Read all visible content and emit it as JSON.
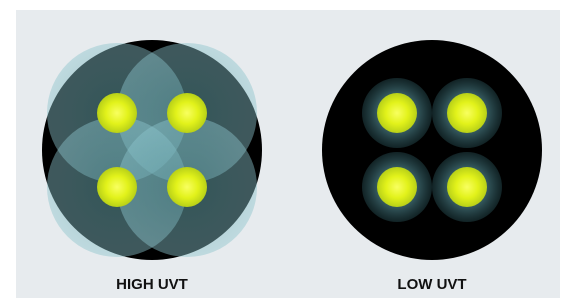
{
  "panels": [
    {
      "label": "HIGH UVT"
    },
    {
      "label": "LOW UVT"
    }
  ]
}
